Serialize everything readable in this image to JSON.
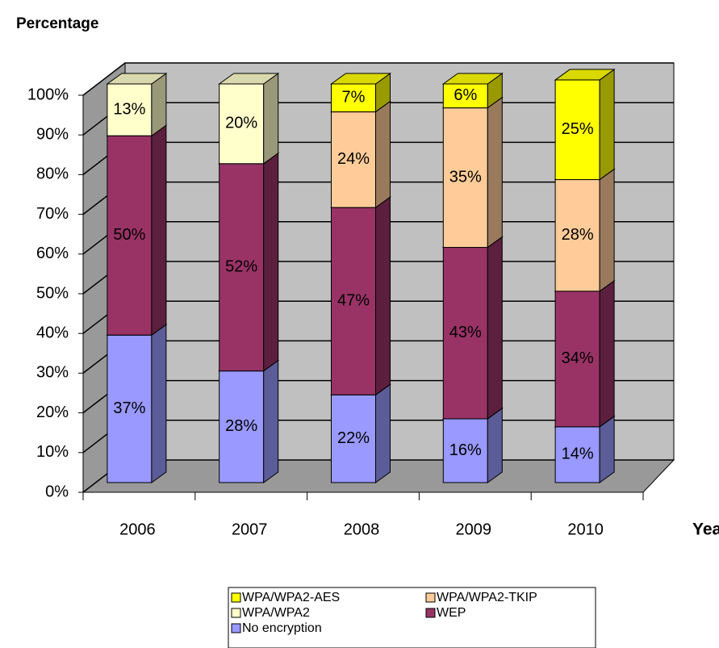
{
  "chart_data": {
    "type": "bar3d_stacked",
    "ylabel": "Percentage",
    "xlabel": "Year",
    "categories": [
      "2006",
      "2007",
      "2008",
      "2009",
      "2010"
    ],
    "series": [
      {
        "name": "No encryption",
        "color": "#9999ff",
        "values": [
          37,
          28,
          22,
          16,
          14
        ],
        "value_labels": [
          "37%",
          "28%",
          "22%",
          "16%",
          "14%"
        ]
      },
      {
        "name": "WEP",
        "color": "#993366",
        "values": [
          50,
          52,
          47,
          43,
          34
        ],
        "value_labels": [
          "50%",
          "52%",
          "47%",
          "43%",
          "34%"
        ]
      },
      {
        "name": "WPA/WPA2",
        "color": "#ffffcc",
        "values": [
          13,
          20,
          null,
          null,
          null
        ],
        "value_labels": [
          "13%",
          "20%",
          null,
          null,
          null
        ]
      },
      {
        "name": "WPA/WPA2-TKIP",
        "color": "#ffcc99",
        "values": [
          null,
          null,
          24,
          35,
          28
        ],
        "value_labels": [
          null,
          null,
          "24%",
          "35%",
          "28%"
        ]
      },
      {
        "name": "WPA/WPA2-AES",
        "color": "#ffff00",
        "values": [
          null,
          null,
          7,
          6,
          25
        ],
        "value_labels": [
          null,
          null,
          "7%",
          "6%",
          "25%"
        ]
      }
    ],
    "ylim": [
      0,
      100
    ],
    "yticks": [
      {
        "value": 0,
        "label": "0%"
      },
      {
        "value": 10,
        "label": "10%"
      },
      {
        "value": 20,
        "label": "20%"
      },
      {
        "value": 30,
        "label": "30%"
      },
      {
        "value": 40,
        "label": "40%"
      },
      {
        "value": 50,
        "label": "50%"
      },
      {
        "value": 60,
        "label": "60%"
      },
      {
        "value": 70,
        "label": "70%"
      },
      {
        "value": 80,
        "label": "80%"
      },
      {
        "value": 90,
        "label": "90%"
      },
      {
        "value": 100,
        "label": "100%"
      }
    ],
    "grid": true,
    "legend": "bottom"
  }
}
